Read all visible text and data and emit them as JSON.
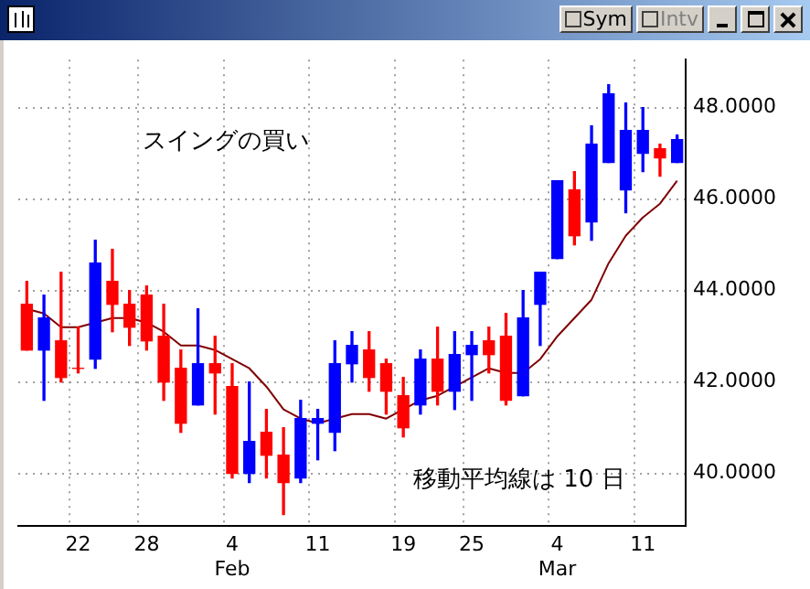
{
  "chart_data": {
    "type": "candlestick",
    "categories": [
      null,
      null,
      null,
      "22",
      null,
      null,
      null,
      "28",
      null,
      null,
      null,
      null,
      "4 Feb",
      null,
      null,
      null,
      null,
      "11",
      null,
      null,
      null,
      null,
      "19",
      null,
      null,
      null,
      "25",
      null,
      null,
      null,
      null,
      "4 Mar",
      null,
      null,
      null,
      null,
      "11",
      null,
      null
    ],
    "ohlc": [
      [
        43.7,
        44.2,
        42.7,
        42.7
      ],
      [
        42.7,
        43.9,
        41.6,
        43.4
      ],
      [
        42.9,
        44.4,
        42.0,
        42.1
      ],
      [
        42.3,
        43.2,
        42.2,
        42.3
      ],
      [
        42.5,
        45.1,
        42.3,
        44.6
      ],
      [
        44.2,
        44.9,
        43.1,
        43.7
      ],
      [
        43.7,
        44.0,
        42.8,
        43.2
      ],
      [
        43.9,
        44.1,
        42.7,
        42.9
      ],
      [
        43.0,
        43.7,
        41.6,
        42.0
      ],
      [
        42.3,
        42.7,
        40.9,
        41.1
      ],
      [
        41.5,
        43.6,
        41.5,
        42.4
      ],
      [
        42.4,
        43.0,
        41.3,
        42.2
      ],
      [
        41.9,
        42.4,
        39.9,
        40.0
      ],
      [
        40.0,
        42.0,
        39.8,
        40.7
      ],
      [
        40.9,
        41.4,
        39.9,
        40.4
      ],
      [
        40.4,
        41.0,
        39.1,
        39.8
      ],
      [
        39.9,
        41.6,
        39.8,
        41.2
      ],
      [
        41.1,
        41.4,
        40.3,
        41.2
      ],
      [
        40.9,
        42.9,
        40.5,
        42.4
      ],
      [
        42.4,
        43.1,
        42.0,
        42.8
      ],
      [
        42.7,
        43.1,
        41.8,
        42.1
      ],
      [
        42.4,
        42.5,
        41.3,
        41.8
      ],
      [
        41.7,
        42.1,
        40.8,
        41.0
      ],
      [
        41.5,
        42.7,
        41.3,
        42.5
      ],
      [
        42.5,
        43.2,
        41.5,
        41.8
      ],
      [
        41.8,
        43.1,
        41.4,
        42.6
      ],
      [
        42.6,
        43.1,
        41.6,
        42.8
      ],
      [
        42.9,
        43.2,
        42.2,
        42.6
      ],
      [
        43.0,
        43.5,
        41.5,
        41.6
      ],
      [
        41.7,
        44.0,
        41.7,
        43.4
      ],
      [
        43.7,
        44.4,
        42.8,
        44.4
      ],
      [
        44.7,
        46.4,
        44.7,
        46.4
      ],
      [
        46.2,
        46.6,
        45.0,
        45.2
      ],
      [
        45.5,
        47.6,
        45.1,
        47.2
      ],
      [
        46.8,
        48.5,
        46.8,
        48.3
      ],
      [
        46.2,
        48.1,
        45.7,
        47.5
      ],
      [
        47.0,
        48.0,
        46.6,
        47.5
      ],
      [
        47.1,
        47.2,
        46.5,
        46.9
      ],
      [
        46.8,
        47.4,
        46.8,
        47.3
      ]
    ],
    "colors": [
      "#ff0000",
      "#0000ff",
      "#ff0000",
      "#ff0000",
      "#0000ff",
      "#ff0000",
      "#ff0000",
      "#ff0000",
      "#ff0000",
      "#ff0000",
      "#0000ff",
      "#ff0000",
      "#ff0000",
      "#0000ff",
      "#ff0000",
      "#ff0000",
      "#0000ff",
      "#0000ff",
      "#0000ff",
      "#0000ff",
      "#ff0000",
      "#ff0000",
      "#ff0000",
      "#0000ff",
      "#ff0000",
      "#0000ff",
      "#0000ff",
      "#ff0000",
      "#ff0000",
      "#0000ff",
      "#0000ff",
      "#0000ff",
      "#ff0000",
      "#0000ff",
      "#0000ff",
      "#0000ff",
      "#0000ff",
      "#ff0000",
      "#0000ff"
    ],
    "series": [
      {
        "type": "line",
        "color": "#800000",
        "values": [
          43.6,
          43.5,
          43.2,
          43.2,
          43.3,
          43.4,
          43.4,
          43.3,
          43.1,
          42.8,
          42.8,
          42.7,
          42.5,
          42.3,
          41.9,
          41.4,
          41.2,
          41.1,
          41.2,
          41.3,
          41.3,
          41.2,
          41.4,
          41.6,
          41.7,
          41.9,
          42.1,
          42.3,
          42.2,
          42.2,
          42.5,
          43.0,
          43.4,
          43.8,
          44.6,
          45.2,
          45.6,
          45.9,
          46.4
        ]
      }
    ],
    "ylim": [
      38.85,
      49.05
    ],
    "yticks": [
      {
        "value": 40,
        "label": "40.0000"
      },
      {
        "value": 42,
        "label": "42.0000"
      },
      {
        "value": 44,
        "label": "44.0000"
      },
      {
        "value": 46,
        "label": "46.0000"
      },
      {
        "value": 48,
        "label": "48.0000"
      }
    ],
    "grid": true,
    "marker": "none",
    "line_style": "solid",
    "legend": false,
    "annotations": [
      "スイングの買い",
      "移動平均線は 10 日",
      "Sym",
      "Intv"
    ]
  }
}
